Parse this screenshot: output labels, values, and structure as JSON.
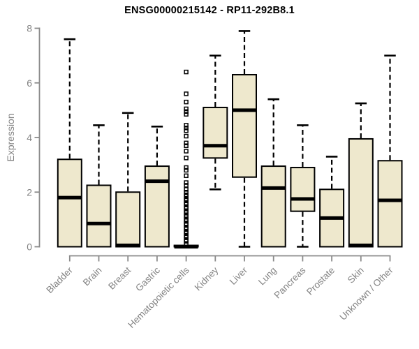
{
  "chart_data": {
    "type": "boxplot",
    "title": "ENSG00000215142 - RP11-292B8.1",
    "xlabel": "",
    "ylabel": "Expression",
    "ylim": [
      0,
      8
    ],
    "yticks": [
      0,
      2,
      4,
      6,
      8
    ],
    "grid": false,
    "legend": "none",
    "categories": [
      "Bladder",
      "Brain",
      "Breast",
      "Gastric",
      "Hematopoietic cells",
      "Kidney",
      "Liver",
      "Lung",
      "Pancreas",
      "Prostate",
      "Skin",
      "Unknown / Other"
    ],
    "boxes": [
      {
        "category": "Bladder",
        "whisker_low": 0,
        "q1": 0,
        "median": 1.8,
        "q3": 3.2,
        "whisker_high": 7.6,
        "outliers": []
      },
      {
        "category": "Brain",
        "whisker_low": 0,
        "q1": 0,
        "median": 0.85,
        "q3": 2.25,
        "whisker_high": 4.45,
        "outliers": []
      },
      {
        "category": "Breast",
        "whisker_low": 0,
        "q1": 0,
        "median": 0.05,
        "q3": 2.0,
        "whisker_high": 4.9,
        "outliers": []
      },
      {
        "category": "Gastric",
        "whisker_low": 0,
        "q1": 0,
        "median": 2.4,
        "q3": 2.95,
        "whisker_high": 4.4,
        "outliers": []
      },
      {
        "category": "Hematopoietic cells",
        "whisker_low": 0,
        "q1": 0,
        "median": 0,
        "q3": 0.05,
        "whisker_high": 0.05,
        "outliers": [
          6.4,
          5.6,
          5.3,
          5.05,
          4.95,
          4.85,
          4.45,
          4.35,
          4.25,
          4.05,
          3.8,
          3.7,
          3.5,
          3.25,
          2.9,
          2.8,
          2.6,
          2.35,
          2.25,
          2.1,
          2.0,
          1.9,
          1.85,
          1.75,
          1.7,
          1.6,
          1.55,
          1.45,
          1.4,
          1.3,
          1.25,
          1.15,
          1.1,
          1.0,
          0.95,
          0.85,
          0.8,
          0.7,
          0.65,
          0.55,
          0.5,
          0.4,
          0.35,
          0.25,
          0.2,
          0.1
        ]
      },
      {
        "category": "Kidney",
        "whisker_low": 2.1,
        "q1": 3.25,
        "median": 3.7,
        "q3": 5.1,
        "whisker_high": 7.0,
        "outliers": []
      },
      {
        "category": "Liver",
        "whisker_low": 0,
        "q1": 2.55,
        "median": 5.0,
        "q3": 6.3,
        "whisker_high": 7.9,
        "outliers": []
      },
      {
        "category": "Lung",
        "whisker_low": 0,
        "q1": 0,
        "median": 2.15,
        "q3": 2.95,
        "whisker_high": 5.4,
        "outliers": []
      },
      {
        "category": "Pancreas",
        "whisker_low": 0,
        "q1": 1.3,
        "median": 1.75,
        "q3": 2.9,
        "whisker_high": 4.45,
        "outliers": []
      },
      {
        "category": "Prostate",
        "whisker_low": 0,
        "q1": 0,
        "median": 1.05,
        "q3": 2.1,
        "whisker_high": 3.3,
        "outliers": []
      },
      {
        "category": "Skin",
        "whisker_low": 0,
        "q1": 0,
        "median": 0.05,
        "q3": 3.95,
        "whisker_high": 5.25,
        "outliers": []
      },
      {
        "category": "Unknown / Other",
        "whisker_low": 0,
        "q1": 0,
        "median": 1.7,
        "q3": 3.15,
        "whisker_high": 7.0,
        "outliers": []
      }
    ],
    "style": {
      "box_fill": "#EEE8CD",
      "box_border": "#000000",
      "median_color": "#000000",
      "whisker_color": "#000000",
      "whisker_style": "dashed",
      "outlier_marker": "open-square",
      "axis_color": "#8A8A8A",
      "tick_label_color": "#838383",
      "title_color": "#000000"
    }
  }
}
